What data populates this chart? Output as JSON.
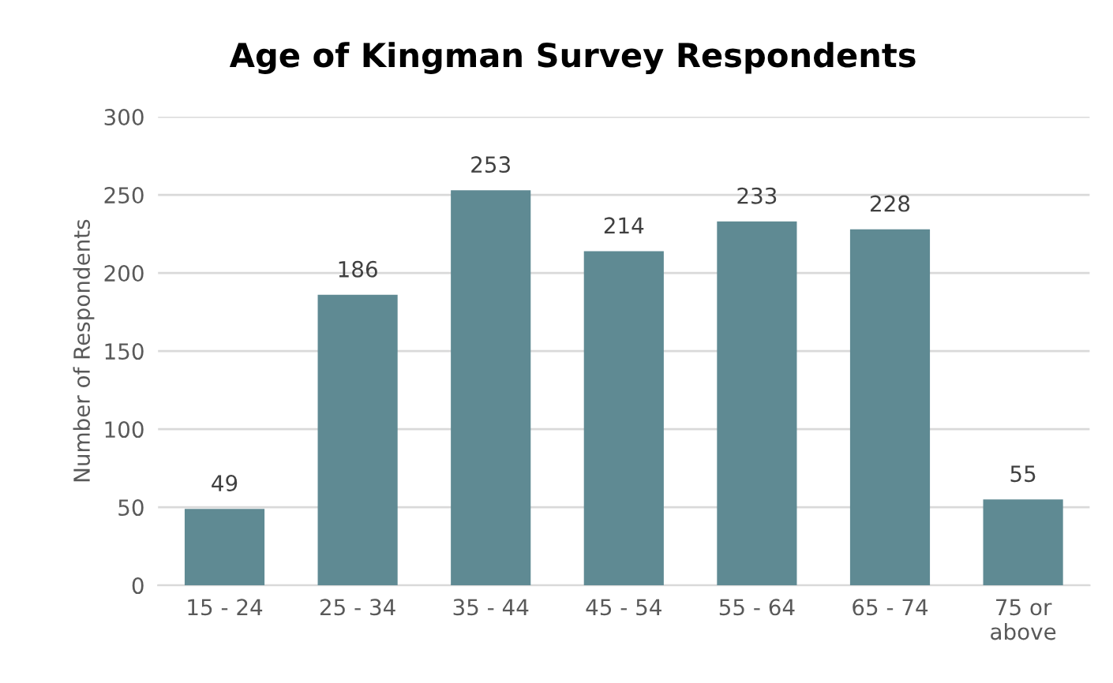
{
  "chart_data": {
    "type": "bar",
    "title": "Age of Kingman Survey Respondents",
    "ylabel": "Number of Respondents",
    "categories": [
      "15 - 24",
      "25 - 34",
      "35 - 44",
      "45 - 54",
      "55 - 64",
      "65 - 74",
      "75 or\nabove"
    ],
    "values": [
      49,
      186,
      253,
      214,
      233,
      228,
      55
    ],
    "color": "#5f8a93",
    "ylim": [
      0,
      300
    ],
    "yticks": [
      0,
      50,
      100,
      150,
      200,
      250,
      300
    ],
    "grid": "y",
    "data_labels": true
  }
}
